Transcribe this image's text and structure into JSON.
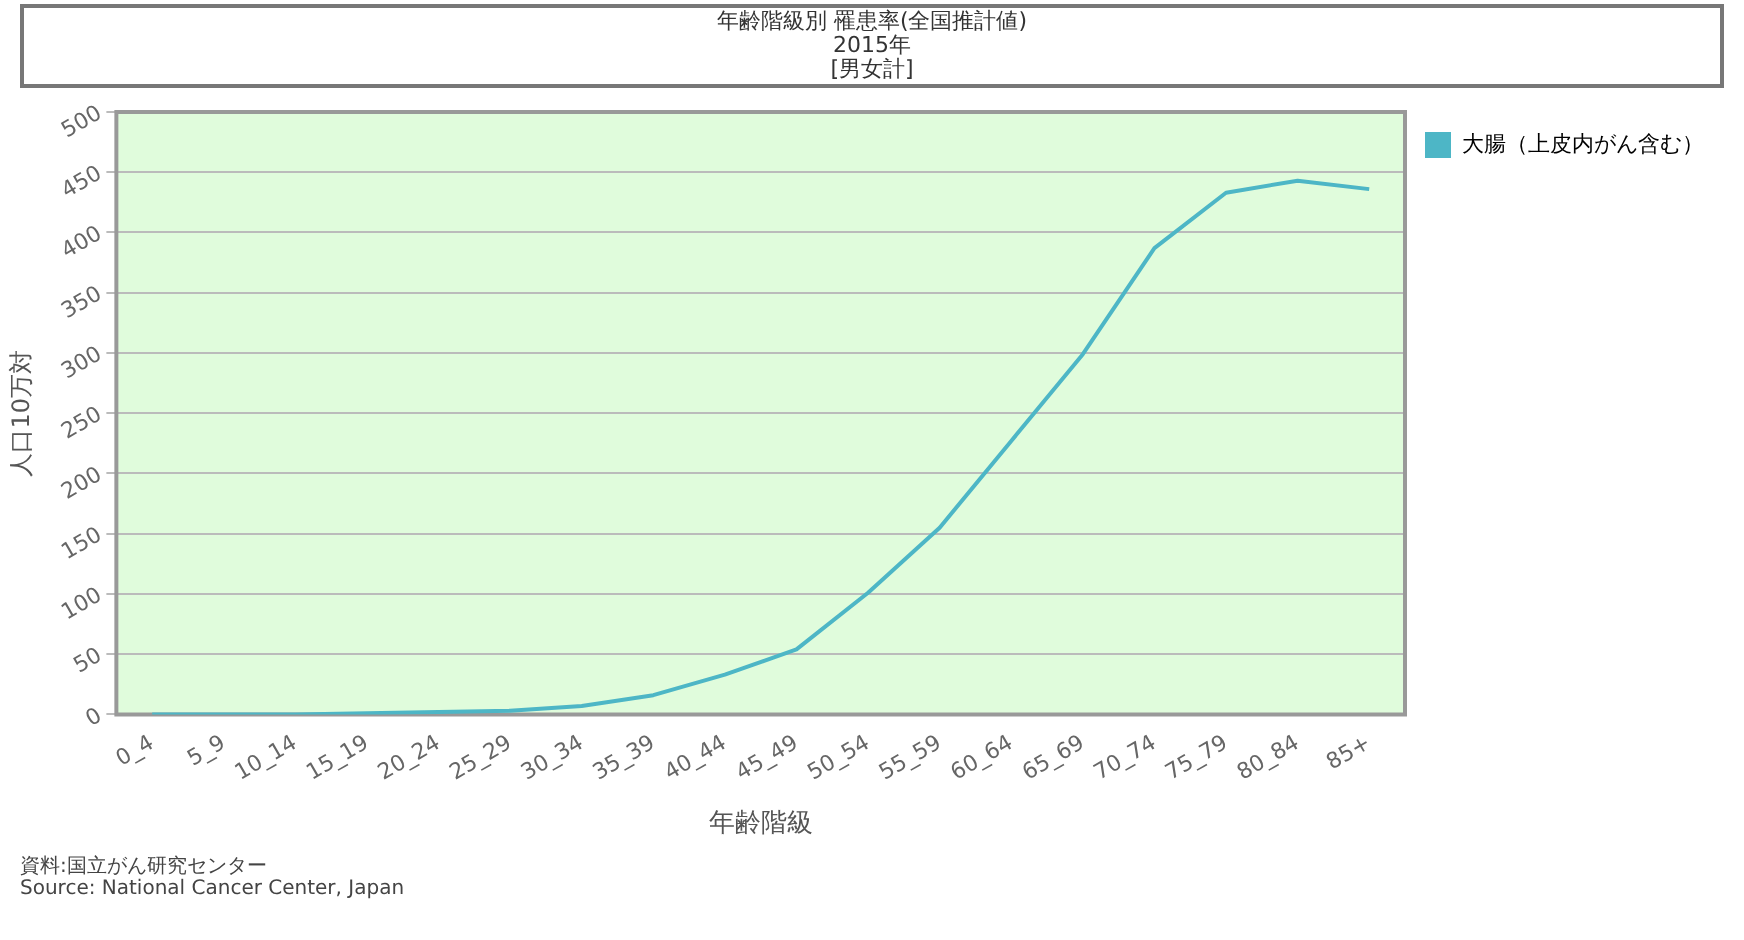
{
  "chart_data": {
    "type": "line",
    "title": "年齢階級別 罹患率(全国推計値)",
    "subtitle": "2015年\n[男女計]",
    "xlabel": "年齢階級",
    "ylabel": "人口10万対",
    "categories": [
      "0_4",
      "5_9",
      "10_14",
      "15_19",
      "20_24",
      "25_29",
      "30_34",
      "35_39",
      "40_44",
      "45_49",
      "50_54",
      "55_59",
      "60_64",
      "65_69",
      "70_74",
      "75_79",
      "80_84",
      "85+"
    ],
    "series": [
      {
        "name": "大腸（上皮内がん含む）",
        "color": "#4db6c6",
        "values": [
          0,
          0,
          0,
          1,
          2,
          3,
          7,
          16,
          33,
          54,
          101,
          155,
          227,
          299,
          387,
          433,
          443,
          436
        ]
      }
    ],
    "ylim": [
      0,
      500
    ],
    "yticks": [
      0,
      50,
      100,
      150,
      200,
      250,
      300,
      350,
      400,
      450,
      500
    ],
    "grid": "y",
    "legend": "top right",
    "marker": "none",
    "line_style": "solid",
    "annotations": [
      "資料:国立がん研究センター",
      "Source: National Cancer Center, Japan"
    ]
  }
}
